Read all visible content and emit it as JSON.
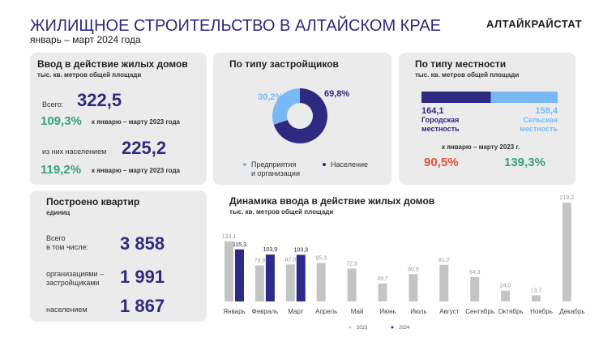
{
  "header": {
    "title": "ЖИЛИЩНОЕ СТРОИТЕЛЬСТВО В АЛТАЙСКОМ КРАЕ",
    "subtitle": "январь – март 2024 года",
    "brand": "АЛТАЙКРАЙСТАТ"
  },
  "housing": {
    "title": "Ввод в действие жилых домов",
    "unit": "тыс. кв. метров общей площади",
    "total_label": "Всего:",
    "total": "322,5",
    "total_change": "109,3%",
    "total_change_label": "к январю – марту 2023 года",
    "pop_label": "из них населением",
    "pop": "225,2",
    "pop_change": "119,2%",
    "pop_change_label": "к январю – марту 2023 года"
  },
  "apartments": {
    "title": "Построено квартир",
    "unit": "единиц",
    "rows": [
      {
        "label": "Всего\nв том числе:",
        "value": "3 858"
      },
      {
        "label": "организациями –\nзастройщиками",
        "value": "1 991"
      },
      {
        "label": "населением",
        "value": "1 867"
      }
    ]
  },
  "chart_data": [
    {
      "type": "donut",
      "title": "По типу застройщиков",
      "categories": [
        "Предприятия\nи организации",
        "Население"
      ],
      "values": [
        30.2,
        69.8
      ],
      "value_labels": [
        "30,2%",
        "69,8%"
      ],
      "colors": [
        "#7ab8f5",
        "#2e2a82"
      ]
    },
    {
      "type": "split",
      "title": "По типу местности",
      "subtitle": "тыс. кв. метров общей площади",
      "categories": [
        "Городская местность",
        "Сельская местность"
      ],
      "values": [
        164.1,
        158.4
      ],
      "value_labels": [
        "164,1",
        "158,4"
      ],
      "colors": [
        "#2e2a82",
        "#7ab8f5"
      ],
      "change_note": "к январю – марту 2023 г.",
      "changes": [
        "90,5%",
        "139,3%"
      ],
      "change_colors": [
        "#e4513a",
        "#3aa17e"
      ]
    },
    {
      "type": "bar",
      "title": "Динамика ввода в действие жилых домов",
      "subtitle": "тыс. кв. метров общей площади",
      "categories": [
        "Январь",
        "Февраль",
        "Март",
        "Апрель",
        "Май",
        "Июнь",
        "Июль",
        "Август",
        "Сентябрь",
        "Октябрь",
        "Ноябрь",
        "Декабрь"
      ],
      "series": [
        {
          "name": "2023",
          "color": "#c4c4c4",
          "values": [
            133.1,
            79.9,
            82.0,
            85.3,
            72.9,
            39.7,
            60.5,
            81.2,
            54.3,
            24.0,
            13.7,
            219.2
          ],
          "value_labels": [
            "133,1",
            "79,9",
            "82,0",
            "85,3",
            "72,9",
            "39,7",
            "60,5",
            "81,2",
            "54,3",
            "24,0",
            "13,7",
            "219,2"
          ]
        },
        {
          "name": "2024",
          "color": "#2e2a8a",
          "values": [
            115.3,
            103.9,
            103.3,
            null,
            null,
            null,
            null,
            null,
            null,
            null,
            null,
            null
          ],
          "value_labels": [
            "115,3",
            "103,9",
            "103,3",
            null,
            null,
            null,
            null,
            null,
            null,
            null,
            null,
            null
          ]
        }
      ]
    }
  ]
}
